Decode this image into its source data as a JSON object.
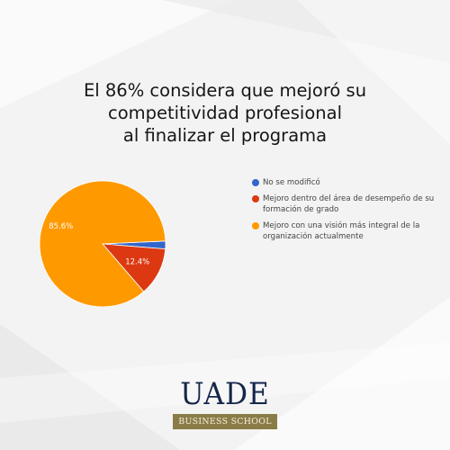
{
  "headline": {
    "line1": "El 86% considera que mejoró su",
    "line2": "competitividad profesional",
    "line3": "al finalizar el programa"
  },
  "chart_data": {
    "type": "pie",
    "categories": [
      "No se modificó",
      "Mejoro dentro del área de desempeño de su formación de grado",
      "Mejoro con una visión más integral de la organización actualmente"
    ],
    "values": [
      2.0,
      12.4,
      85.6
    ],
    "value_labels": [
      "",
      "12.4%",
      "85.6%"
    ],
    "colors": [
      "#3366cc",
      "#dc3912",
      "#ff9900"
    ],
    "legend_position": "right"
  },
  "legend": {
    "items": [
      {
        "label": "No se modificó",
        "color": "#3366cc"
      },
      {
        "label": "Mejoro dentro del área de desempeño de su formación de grado",
        "color": "#dc3912"
      },
      {
        "label": "Mejoro con una visión más integral de la organización actualmente",
        "color": "#ff9900"
      }
    ]
  },
  "logo": {
    "name": "UADE",
    "subtitle": "BUSINESS SCHOOL",
    "bar_color": "#8a7c46",
    "text_color": "#15264a"
  }
}
